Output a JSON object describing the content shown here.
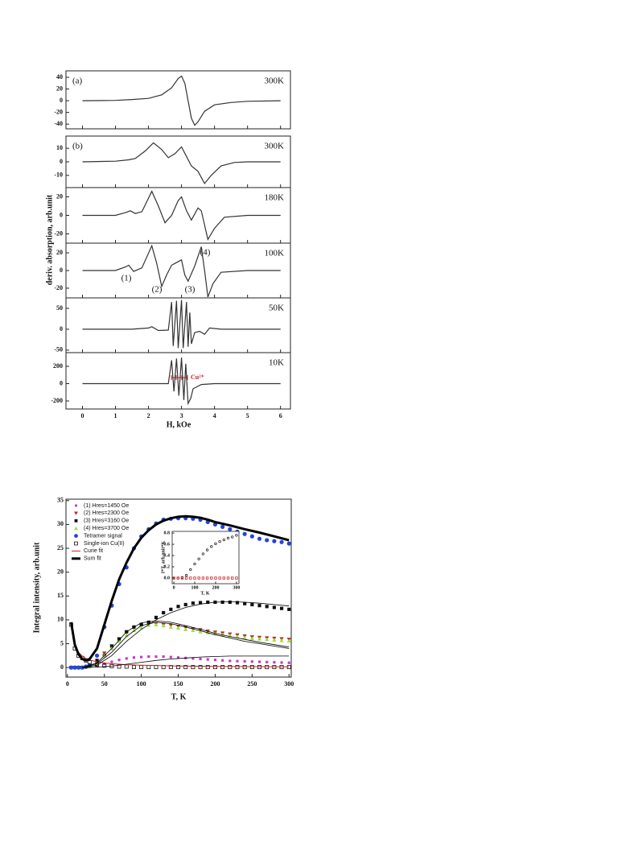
{
  "chart_data": [
    {
      "type": "line",
      "xlabel": "H, kOe",
      "ylabel": "deriv. absorption, arb.unit",
      "xlim": [
        -0.5,
        6.3
      ],
      "xticks": [
        0,
        1,
        2,
        3,
        4,
        5,
        6
      ],
      "color": "#333333",
      "panels": [
        {
          "label": "(a)",
          "temperature": "300K",
          "ylim": [
            -48,
            51
          ],
          "yticks": [
            -40,
            -20,
            0,
            20,
            40
          ],
          "x": [
            0,
            1.0,
            1.5,
            2.0,
            2.4,
            2.7,
            2.9,
            3.0,
            3.1,
            3.2,
            3.3,
            3.4,
            3.5,
            3.7,
            4.0,
            4.5,
            5.0,
            6.0
          ],
          "values": [
            0,
            0.5,
            2,
            4,
            10,
            22,
            38,
            42,
            30,
            0,
            -30,
            -42,
            -36,
            -18,
            -7,
            -3,
            -1,
            0
          ]
        },
        {
          "label": "(b)",
          "temperature": "300K",
          "ylim": [
            -19,
            19
          ],
          "yticks": [
            -10,
            0,
            10
          ],
          "x": [
            0,
            1.0,
            1.4,
            1.6,
            1.9,
            2.15,
            2.4,
            2.6,
            2.8,
            3.0,
            3.15,
            3.3,
            3.5,
            3.7,
            3.9,
            4.2,
            4.6,
            5.0,
            6.0
          ],
          "values": [
            0,
            0.5,
            1.5,
            2.5,
            8,
            14,
            9,
            3,
            6,
            11,
            4,
            -3,
            -7,
            -16,
            -10,
            -3,
            -0.5,
            0,
            0
          ]
        },
        {
          "temperature": "180K",
          "ylim": [
            -30,
            30
          ],
          "yticks": [
            -20,
            0,
            20
          ],
          "x": [
            0,
            1.0,
            1.3,
            1.45,
            1.6,
            1.8,
            2.1,
            2.3,
            2.5,
            2.7,
            2.9,
            3.0,
            3.15,
            3.3,
            3.5,
            3.6,
            3.8,
            4.0,
            4.3,
            5.0,
            6.0
          ],
          "values": [
            0,
            0,
            3,
            5,
            2,
            4,
            26,
            10,
            -8,
            0,
            16,
            20,
            5,
            -5,
            8,
            5,
            -26,
            -14,
            -2,
            0,
            0
          ]
        },
        {
          "temperature": "100K",
          "ylim": [
            -31,
            31
          ],
          "yticks": [
            -20,
            0,
            20
          ],
          "annotations": [
            "(1)",
            "(2)",
            "(3)",
            "(4)"
          ],
          "x": [
            0,
            1.0,
            1.3,
            1.4,
            1.55,
            1.8,
            2.1,
            2.25,
            2.4,
            2.55,
            2.7,
            2.8,
            3.0,
            3.1,
            3.2,
            3.4,
            3.6,
            3.7,
            3.8,
            3.95,
            4.2,
            5.0,
            6.0
          ],
          "values": [
            0,
            0,
            4,
            6,
            -1,
            3,
            28,
            8,
            -18,
            -5,
            6,
            8,
            12,
            -5,
            -12,
            5,
            27,
            0,
            -30,
            -15,
            -2,
            0,
            0
          ]
        },
        {
          "temperature": "50K",
          "ylim": [
            -56,
            75
          ],
          "yticks": [
            -50,
            0,
            50
          ],
          "x": [
            0,
            1.5,
            2.0,
            2.1,
            2.3,
            2.6,
            2.7,
            2.75,
            2.85,
            2.9,
            3.0,
            3.05,
            3.15,
            3.2,
            3.25,
            3.3,
            3.4,
            3.55,
            3.7,
            3.85,
            4.2,
            6.0
          ],
          "values": [
            0,
            0,
            3,
            6,
            -3,
            -2,
            65,
            -40,
            68,
            -45,
            70,
            -45,
            65,
            -42,
            40,
            -35,
            -8,
            -5,
            -12,
            3,
            0,
            0
          ]
        },
        {
          "temperature": "10K",
          "ylim": [
            -293,
            358
          ],
          "yticks": [
            -200,
            0,
            200
          ],
          "annotation": "Cu²⁺",
          "x": [
            0,
            2.6,
            2.7,
            2.77,
            2.85,
            2.92,
            3.0,
            3.07,
            3.13,
            3.2,
            3.28,
            3.35,
            3.6,
            4.0,
            6.0
          ],
          "values": [
            0,
            0,
            270,
            -90,
            290,
            -140,
            300,
            -190,
            230,
            -230,
            -170,
            -60,
            -10,
            0,
            0
          ]
        }
      ]
    },
    {
      "type": "scatter",
      "xlabel": "T, K",
      "ylabel": "Integral intensity, arb.unit",
      "xlim": [
        -2,
        303
      ],
      "ylim": [
        -2,
        35.3
      ],
      "xticks": [
        0,
        50,
        100,
        150,
        200,
        250,
        300
      ],
      "yticks": [
        0,
        5,
        10,
        15,
        20,
        25,
        30,
        35
      ],
      "x": [
        5,
        10,
        15,
        20,
        25,
        30,
        40,
        50,
        60,
        70,
        80,
        90,
        100,
        110,
        120,
        130,
        140,
        150,
        160,
        170,
        180,
        190,
        200,
        210,
        220,
        230,
        240,
        250,
        260,
        270,
        280,
        290,
        300
      ],
      "series": [
        {
          "name": "(1) Hres=1450 Oe",
          "color": "#cc33cc",
          "marker": "square-small",
          "values": [
            0,
            0,
            0,
            0,
            0,
            0.1,
            0.3,
            0.8,
            1.2,
            1.6,
            1.9,
            2.1,
            2.2,
            2.3,
            2.3,
            2.3,
            2.2,
            2.1,
            2,
            1.9,
            1.8,
            1.7,
            1.6,
            1.5,
            1.4,
            1.35,
            1.3,
            1.25,
            1.2,
            1.15,
            1.1,
            1.05,
            1
          ]
        },
        {
          "name": "(2) Hres=2300 Oe",
          "color": "#b8281e",
          "marker": "triangle-down",
          "values": [
            0,
            0,
            0,
            0,
            0.1,
            0.3,
            1,
            3,
            4.5,
            6,
            7.3,
            8.3,
            8.8,
            9.1,
            9.2,
            9,
            8.8,
            8.6,
            8.4,
            8.1,
            7.9,
            7.6,
            7.4,
            7.2,
            7,
            6.8,
            6.6,
            6.4,
            6.3,
            6.2,
            6.1,
            6,
            5.9
          ]
        },
        {
          "name": "(3) Hres=3160 Oe",
          "color": "#111111",
          "marker": "square",
          "values": [
            0,
            0,
            0,
            0,
            0.1,
            0.3,
            1.5,
            2.5,
            4.5,
            6,
            7.5,
            8.5,
            9,
            9.5,
            10.5,
            11.5,
            12.2,
            12.8,
            13.2,
            13.5,
            13.6,
            13.7,
            13.7,
            13.7,
            13.7,
            13.6,
            13.4,
            13.2,
            13,
            12.8,
            12.6,
            12.4,
            12.2
          ]
        },
        {
          "name": "(4) Hres=3700 Oe",
          "color": "#9be03a",
          "marker": "triangle-up",
          "values": [
            0,
            0,
            0,
            0,
            0.1,
            0.2,
            0.8,
            2.5,
            4,
            5.5,
            6.8,
            7.8,
            8.4,
            8.9,
            9,
            8.8,
            8.5,
            8.3,
            8,
            7.8,
            7.5,
            7.3,
            7.1,
            6.9,
            6.7,
            6.5,
            6.3,
            6.1,
            6,
            5.9,
            5.8,
            5.7,
            5.6
          ]
        },
        {
          "name": "Tetramer signal",
          "color": "#2244dd",
          "marker": "circle",
          "values": [
            0,
            0,
            0,
            0,
            0.2,
            0.5,
            2.5,
            8.5,
            13,
            17.5,
            21,
            25,
            27.5,
            29,
            30.2,
            31,
            31.2,
            31.3,
            31.3,
            31.2,
            31,
            30.5,
            30,
            29.5,
            29,
            28.5,
            28,
            27.5,
            27,
            26.7,
            26.5,
            26.3,
            26
          ]
        },
        {
          "name": "Single-ion Cu(II)",
          "color": "#111111",
          "marker": "open-square",
          "values": [
            9,
            4,
            2.5,
            2,
            1.5,
            1.1,
            0.6,
            0.4,
            0.3,
            0.2,
            0.2,
            0.1,
            0.1,
            0.1,
            0.1,
            0.1,
            0.1,
            0.1,
            0.1,
            0.1,
            0.1,
            0.1,
            0.1,
            0.1,
            0.1,
            0.1,
            0.1,
            0.1,
            0.1,
            0.1,
            0.1,
            0.1,
            0.1
          ]
        },
        {
          "name": "Curie fit",
          "color": "#cc2222",
          "line": 1,
          "x": [
            5,
            8,
            10,
            15,
            20,
            25,
            30,
            40,
            50,
            60,
            80,
            100,
            150,
            200,
            250,
            300
          ],
          "values": [
            9.5,
            6,
            4.8,
            3.2,
            2.4,
            1.9,
            1.6,
            1.2,
            0.95,
            0.8,
            0.6,
            0.48,
            0.32,
            0.24,
            0.19,
            0.16
          ]
        },
        {
          "name": "Sum fit",
          "color": "#000000",
          "line": 3,
          "x": [
            5,
            10,
            15,
            20,
            25,
            30,
            40,
            50,
            60,
            70,
            80,
            90,
            100,
            110,
            120,
            130,
            140,
            150,
            160,
            170,
            180,
            190,
            200,
            220,
            240,
            260,
            280,
            300
          ],
          "values": [
            9.5,
            4.8,
            2.8,
            1.8,
            1.5,
            1.8,
            4,
            9,
            14,
            18.5,
            22,
            25,
            27.2,
            28.8,
            30,
            30.8,
            31.3,
            31.6,
            31.7,
            31.6,
            31.4,
            31,
            30.5,
            29.8,
            29,
            28.3,
            27.5,
            26.7
          ]
        },
        {
          "color": "#000000",
          "line": 0.8,
          "x": [
            20,
            40,
            60,
            80,
            100,
            120,
            140,
            160,
            180,
            200,
            220,
            240,
            260,
            280,
            300
          ],
          "values": [
            0,
            0.5,
            2.5,
            5.5,
            8,
            10,
            11.5,
            12.6,
            13.3,
            13.7,
            13.8,
            13.7,
            13.5,
            13.2,
            12.9
          ]
        },
        {
          "color": "#000000",
          "line": 0.8,
          "x": [
            20,
            40,
            60,
            80,
            100,
            120,
            140,
            160,
            180,
            200,
            220,
            240,
            260,
            280,
            300
          ],
          "values": [
            0,
            1,
            4,
            7.5,
            9.4,
            9.8,
            9.5,
            8.8,
            8,
            7.2,
            6.5,
            5.9,
            5.3,
            4.8,
            4.3
          ]
        },
        {
          "color": "#000000",
          "line": 0.8,
          "x": [
            20,
            40,
            60,
            80,
            100,
            120,
            140,
            160,
            180,
            200,
            220,
            240,
            260,
            280,
            300
          ],
          "values": [
            0,
            0.8,
            3.2,
            6.5,
            8.8,
            9.5,
            9.2,
            8.5,
            7.7,
            6.9,
            6.2,
            5.5,
            5,
            4.5,
            4
          ]
        },
        {
          "color": "#000000",
          "line": 0.8,
          "x": [
            20,
            40,
            60,
            80,
            100,
            120,
            140,
            160,
            180,
            200,
            220,
            240,
            260,
            280,
            300
          ],
          "values": [
            0,
            0.1,
            0.3,
            0.7,
            1.1,
            1.5,
            1.8,
            2,
            2.2,
            2.3,
            2.4,
            2.4,
            2.4,
            2.4,
            2.4
          ]
        }
      ]
    },
    {
      "type": "scatter",
      "xlabel": "T, K",
      "ylabel": "I*T, arb.unit*K",
      "xlim": [
        -8,
        312
      ],
      "ylim": [
        -0.1,
        0.83
      ],
      "xticks": [
        0,
        100,
        200,
        300
      ],
      "yticks": [
        {
          "value": 0,
          "label": "0.0"
        },
        0.2,
        0.4,
        0.6,
        0.8
      ],
      "x": [
        0,
        20,
        40,
        60,
        80,
        100,
        120,
        140,
        160,
        180,
        200,
        220,
        240,
        260,
        280,
        300
      ],
      "series": [
        {
          "color": "#111111",
          "marker": "open-circle",
          "values": [
            0,
            0,
            0.01,
            0.05,
            0.15,
            0.25,
            0.34,
            0.43,
            0.5,
            0.56,
            0.61,
            0.65,
            0.68,
            0.71,
            0.73,
            0.76
          ]
        },
        {
          "color": "#cc2222",
          "marker": "open-square",
          "values": [
            0,
            0,
            0,
            0,
            0,
            0,
            0,
            0,
            0,
            0,
            0,
            0,
            0,
            0,
            0,
            0
          ]
        }
      ]
    }
  ]
}
